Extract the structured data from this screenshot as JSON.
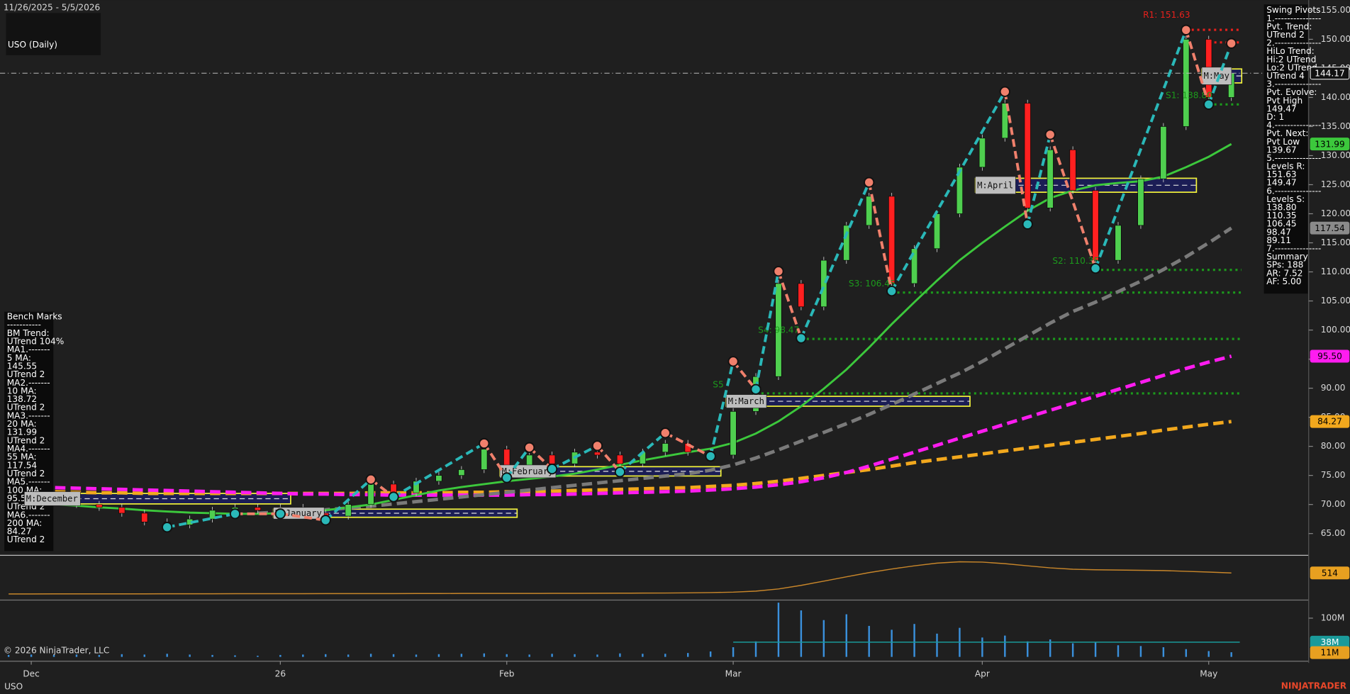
{
  "header": {
    "date_range": "11/26/2025 - 5/5/2026",
    "title": "USO (Daily)",
    "copyright": "© 2026 NinjaTrader, LLC",
    "symbol": "USO",
    "brand": "NINJATRADER"
  },
  "swing_pivots_panel": {
    "lines": [
      "Swing Pivots",
      "1.---------------",
      "Pvt. Trend:",
      "UTrend 2",
      "2.---------------",
      "HiLo Trend:",
      "Hi:2 UTrend",
      "Lo:2 UTrend",
      "UTrend 4",
      "3.---------------",
      "Pvt. Evolve:",
      "Pvt High",
      "149.47",
      "D: 1",
      "4.---------------",
      "Pvt. Next:",
      "Pvt Low",
      "139.67",
      "5.---------------",
      "Levels R:",
      "151.63",
      "149.47",
      "6.---------------",
      "Levels S:",
      "138.80",
      "110.35",
      "106.45",
      "98.47",
      "89.11",
      "7.---------------",
      "Summary",
      "SPs: 188",
      "AR: 7.52",
      "AF: 5.00"
    ]
  },
  "bench_marks_panel": {
    "lines": [
      "Bench Marks",
      "-----------",
      "BM Trend:",
      "UTrend 104%",
      "MA1.-------",
      "5 MA:",
      "145.55",
      "UTrend 2",
      "MA2.-------",
      "10 MA:",
      "138.72",
      "UTrend 2",
      "MA3.-------",
      "20 MA:",
      "131.99",
      "UTrend 2",
      "MA4.-------",
      "55 MA:",
      "117.54",
      "UTrend 2",
      "MA5.-------",
      "100 MA:",
      "95.5",
      "UTrend 2",
      "MA6.-------",
      "200 MA:",
      "84.27",
      "UTrend 2"
    ]
  },
  "chart_data": [
    {
      "type": "candlestick",
      "categories": [
        null,
        "Dec",
        null,
        null,
        null,
        null,
        null,
        null,
        null,
        null,
        null,
        null,
        "26",
        null,
        null,
        null,
        null,
        null,
        null,
        null,
        null,
        null,
        "Feb",
        null,
        null,
        null,
        null,
        null,
        null,
        null,
        null,
        null,
        "Mar",
        null,
        null,
        null,
        null,
        null,
        null,
        null,
        null,
        null,
        null,
        "Apr",
        null,
        null,
        null,
        null,
        null,
        null,
        null,
        null,
        null,
        "May",
        null
      ],
      "values": [
        71,
        70.5,
        71,
        70,
        69.5,
        68.5,
        67,
        66.5,
        67.5,
        69,
        69.5,
        69,
        69.5,
        68.5,
        68,
        70,
        73.5,
        72,
        74,
        75,
        76,
        79.5,
        76,
        78.5,
        77,
        79,
        78.5,
        77,
        79,
        80.5,
        79,
        78.5,
        86,
        92,
        108,
        104,
        112,
        118,
        123,
        108,
        114,
        120,
        128,
        133,
        139,
        121,
        131,
        124,
        112,
        118,
        126,
        135,
        150,
        140,
        144.17
      ],
      "up_color": "#4fcf4f",
      "down_color": "#ff2020",
      "ylim": [
        62,
        156
      ],
      "yticks": [
        {
          "value": 65,
          "label": "65.00"
        },
        {
          "value": 70,
          "label": "70.00"
        },
        {
          "value": 75,
          "label": "75.00"
        },
        {
          "value": 80,
          "label": "80.00"
        },
        {
          "value": 85,
          "label": "85.00"
        },
        {
          "value": 90,
          "label": "90.00"
        },
        {
          "value": 95,
          "label": "95.00"
        },
        {
          "value": 100,
          "label": "100.00"
        },
        {
          "value": 105,
          "label": "105.00"
        },
        {
          "value": 110,
          "label": "110.00"
        },
        {
          "value": 115,
          "label": "115.00"
        },
        {
          "value": 120,
          "label": "120.00"
        },
        {
          "value": 125,
          "label": "125.00"
        },
        {
          "value": 130,
          "label": "130.00"
        },
        {
          "value": 135,
          "label": "135.00"
        },
        {
          "value": 140,
          "label": "140.00"
        },
        {
          "value": 145,
          "label": "145.00"
        },
        {
          "value": 150,
          "label": "150.00"
        },
        {
          "value": 155,
          "label": "155.00"
        }
      ],
      "series": [
        {
          "color": "#f2a81d",
          "dashed": true,
          "values": [
            72.4,
            72.3,
            72.2,
            72.1,
            72,
            72,
            71.9,
            71.9,
            71.9,
            71.9,
            71.9,
            71.9,
            71.9,
            71.9,
            71.9,
            71.9,
            72,
            72,
            72,
            72,
            72.1,
            72.1,
            72.2,
            72.2,
            72.3,
            72.4,
            72.5,
            72.6,
            72.7,
            72.8,
            72.9,
            73.1,
            73.3,
            73.6,
            74,
            74.5,
            75,
            75.5,
            76,
            76.6,
            77.2,
            77.7,
            78.2,
            78.7,
            79.2,
            79.7,
            80.2,
            80.7,
            81.2,
            81.7,
            82.2,
            82.8,
            83.3,
            83.8,
            84.27
          ]
        },
        {
          "color": "#ff1cf0",
          "dashed": true,
          "values": [
            73.1,
            73,
            72.9,
            72.8,
            72.7,
            72.6,
            72.5,
            72.4,
            72.3,
            72.2,
            72.1,
            72,
            71.9,
            71.8,
            71.8,
            71.7,
            71.7,
            71.6,
            71.6,
            71.6,
            71.6,
            71.6,
            71.6,
            71.7,
            71.7,
            71.8,
            71.9,
            72,
            72.1,
            72.2,
            72.3,
            72.5,
            72.7,
            73,
            73.4,
            73.9,
            74.6,
            75.5,
            76.6,
            77.8,
            79,
            80.2,
            81.4,
            82.6,
            83.8,
            85,
            86.2,
            87.4,
            88.6,
            89.8,
            91,
            92.2,
            93.4,
            94.5,
            95.5
          ]
        },
        {
          "color": "#7a7a7a",
          "dashed": true,
          "values": [
            null,
            null,
            null,
            null,
            null,
            null,
            null,
            null,
            null,
            null,
            null,
            68.5,
            68.7,
            68.9,
            69.1,
            69.4,
            69.7,
            70.1,
            70.5,
            70.9,
            71.3,
            71.7,
            72.1,
            72.5,
            72.9,
            73.3,
            73.7,
            74.1,
            74.5,
            74.9,
            75.3,
            75.9,
            76.8,
            78,
            79.4,
            80.9,
            82.4,
            83.9,
            85.5,
            87.2,
            89,
            90.8,
            92.6,
            94.6,
            96.8,
            99,
            101.2,
            103.2,
            104.8,
            106.6,
            108.4,
            110.4,
            112.6,
            115,
            117.54
          ]
        },
        {
          "color": "#3cc83c",
          "dashed": false,
          "values": [
            70.5,
            70.3,
            70,
            69.8,
            69.5,
            69.3,
            69,
            68.8,
            68.6,
            68.5,
            68.4,
            68.4,
            68.5,
            68.7,
            69,
            69.5,
            70,
            70.8,
            71.6,
            72.4,
            73,
            73.5,
            74,
            74.4,
            74.8,
            75.3,
            76,
            76.8,
            77.6,
            78.3,
            79,
            79.6,
            80.6,
            82.2,
            84.3,
            86.9,
            89.9,
            93.2,
            97,
            101,
            104.8,
            108.5,
            112,
            115,
            117.8,
            120.5,
            122.7,
            124,
            124.9,
            125.3,
            125.6,
            126.4,
            128,
            129.8,
            131.99
          ]
        }
      ],
      "pivots": [
        {
          "x": 7,
          "value": 66.1,
          "color": "#2ab8b8"
        },
        {
          "x": 10,
          "value": 68.4,
          "color": "#2ab8b8"
        },
        {
          "x": 12,
          "value": 68.4,
          "color": "#2ab8b8"
        },
        {
          "x": 14,
          "value": 67.3,
          "color": "#2ab8b8"
        },
        {
          "x": 16,
          "value": 74.3,
          "color": "#f0806c"
        },
        {
          "x": 17,
          "value": 71.3,
          "color": "#2ab8b8"
        },
        {
          "x": 21,
          "value": 80.5,
          "color": "#f0806c"
        },
        {
          "x": 22,
          "value": 74.6,
          "color": "#2ab8b8"
        },
        {
          "x": 23,
          "value": 79.8,
          "color": "#f0806c"
        },
        {
          "x": 24,
          "value": 76.1,
          "color": "#2ab8b8"
        },
        {
          "x": 26,
          "value": 80.1,
          "color": "#f0806c"
        },
        {
          "x": 27,
          "value": 75.6,
          "color": "#2ab8b8"
        },
        {
          "x": 29,
          "value": 82.3,
          "color": "#f0806c"
        },
        {
          "x": 31,
          "value": 78.3,
          "color": "#2ab8b8"
        },
        {
          "x": 32,
          "value": 94.6,
          "color": "#f0806c"
        },
        {
          "x": 33,
          "value": 89.8,
          "color": "#2ab8b8"
        },
        {
          "x": 34,
          "value": 110.1,
          "color": "#f0806c"
        },
        {
          "x": 35,
          "value": 98.6,
          "color": "#2ab8b8"
        },
        {
          "x": 38,
          "value": 125.4,
          "color": "#f0806c"
        },
        {
          "x": 39,
          "value": 106.7,
          "color": "#2ab8b8"
        },
        {
          "x": 44,
          "value": 141,
          "color": "#f0806c"
        },
        {
          "x": 45,
          "value": 118.2,
          "color": "#2ab8b8"
        },
        {
          "x": 46,
          "value": 133.6,
          "color": "#f0806c"
        },
        {
          "x": 48,
          "value": 110.6,
          "color": "#2ab8b8"
        },
        {
          "x": 52,
          "value": 151.6,
          "color": "#f0806c"
        },
        {
          "x": 53,
          "value": 138.8,
          "color": "#2ab8b8"
        },
        {
          "x": 54,
          "value": 149.3,
          "color": "#f0806c"
        }
      ],
      "levels": [
        {
          "label": "R1: 151.63",
          "value": 151.63,
          "start": 52,
          "color": "#e8201c"
        },
        {
          "value": 149.47,
          "start": 53,
          "color": "#e8201c"
        },
        {
          "label": "S1: 138.80",
          "value": 138.8,
          "start": 53,
          "color": "#1c9a1c"
        },
        {
          "label": "S2: 110.35",
          "value": 110.35,
          "start": 48,
          "color": "#1c9a1c"
        },
        {
          "label": "S3: 106.45",
          "value": 106.45,
          "start": 39,
          "color": "#1c9a1c"
        },
        {
          "label": "S4: 98.47",
          "value": 98.47,
          "start": 35,
          "color": "#1c9a1c"
        },
        {
          "label": "S5",
          "value": 89.11,
          "start": 33,
          "color": "#1c9a1c"
        }
      ],
      "month_boxes": [
        {
          "label": "M:December",
          "low": 70.1,
          "high": 71.9,
          "start": 1,
          "end": 12
        },
        {
          "label": "M:January",
          "low": 67.8,
          "high": 69.2,
          "start": 12,
          "end": 22
        },
        {
          "label": "M:February",
          "low": 74.9,
          "high": 76.5,
          "start": 22,
          "end": 31
        },
        {
          "label": "M:March",
          "low": 86.9,
          "high": 88.6,
          "start": 32,
          "end": 42
        },
        {
          "label": "M:April",
          "low": 123.7,
          "high": 126.1,
          "start": 43,
          "end": 52
        },
        {
          "label": "M:May",
          "low": 142.5,
          "high": 144.9,
          "start": 53,
          "end": 54
        }
      ],
      "price_markers": [
        {
          "value": 144.17,
          "color": "#111111",
          "text_color": "#ffffff",
          "line": "dashdot"
        },
        {
          "value": 131.99,
          "color": "#3cc83c",
          "text_color": "#000000"
        },
        {
          "value": 117.54,
          "color": "#8a8a8a",
          "text_color": "#000000"
        },
        {
          "value": 95.5,
          "label": "95.50",
          "color": "#ff1cf0",
          "text_color": "#000000"
        },
        {
          "value": 84.27,
          "color": "#f2a81d",
          "text_color": "#000000"
        }
      ]
    },
    {
      "type": "line",
      "color": "#c8862a",
      "ylim": [
        0,
        800
      ],
      "values": [
        116,
        116,
        117,
        117,
        118,
        118,
        118,
        119,
        119,
        119,
        120,
        120,
        121,
        121,
        122,
        122,
        123,
        123,
        124,
        124,
        125,
        125,
        126,
        126,
        127,
        128,
        129,
        130,
        132,
        134,
        137,
        142,
        150,
        170,
        210,
        280,
        360,
        440,
        520,
        590,
        650,
        700,
        727,
        720,
        690,
        650,
        610,
        585,
        575,
        570,
        565,
        560,
        545,
        530,
        514
      ],
      "price_markers": [
        {
          "value": 514,
          "color": "#e8a020",
          "text_color": "#000000"
        }
      ]
    },
    {
      "type": "bar",
      "color": "#3a90dc",
      "ylim": [
        0,
        140
      ],
      "values": [
        5,
        6,
        5,
        6,
        5,
        7,
        6,
        8,
        6,
        5,
        4,
        3,
        5,
        6,
        7,
        6,
        8,
        7,
        6,
        7,
        8,
        9,
        7,
        6,
        8,
        7,
        6,
        9,
        8,
        8,
        10,
        14,
        25,
        40,
        140,
        120,
        95,
        110,
        80,
        70,
        85,
        60,
        75,
        50,
        55,
        40,
        45,
        35,
        38,
        30,
        28,
        25,
        20,
        15,
        12
      ],
      "yticks": [
        {
          "value": 100,
          "label": "100M"
        }
      ],
      "price_markers": [
        {
          "value": 38,
          "label": "38M",
          "color": "#1a9a9a",
          "text_color": "#ffffff",
          "line": "solid"
        },
        {
          "value": 11,
          "label": "11M",
          "color": "#e8a020",
          "text_color": "#000000"
        }
      ]
    }
  ]
}
